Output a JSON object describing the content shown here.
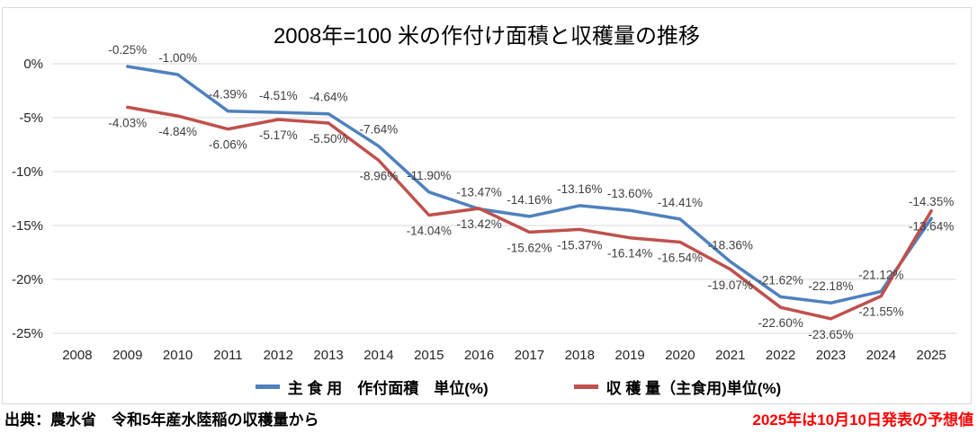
{
  "chart_data": {
    "type": "line",
    "title": "2008年=100 米の作付け面積と収穫量の推移",
    "categories": [
      "2008",
      "2009",
      "2010",
      "2011",
      "2012",
      "2013",
      "2014",
      "2015",
      "2016",
      "2017",
      "2018",
      "2019",
      "2020",
      "2021",
      "2022",
      "2023",
      "2024",
      "2025"
    ],
    "series": [
      {
        "name": "主 食 用　作付面積　単位(%)",
        "color": "#4F81BD",
        "values": [
          null,
          -0.25,
          -1.0,
          -4.39,
          -4.51,
          -4.64,
          -7.64,
          -11.9,
          -13.47,
          -14.16,
          -13.16,
          -13.6,
          -14.41,
          -18.36,
          -21.62,
          -22.18,
          -21.12,
          -14.35
        ]
      },
      {
        "name": "収 穫 量（主食用)単位(%)",
        "color": "#C0504D",
        "values": [
          null,
          -4.03,
          -4.84,
          -6.06,
          -5.17,
          -5.5,
          -8.96,
          -14.04,
          -13.42,
          -15.62,
          -15.37,
          -16.14,
          -16.54,
          -19.07,
          -22.6,
          -23.65,
          -21.55,
          -13.64
        ]
      }
    ],
    "xlabel": "",
    "ylabel": "",
    "yticks": [
      "0%",
      "-5%",
      "-10%",
      "-15%",
      "-20%",
      "-25%"
    ],
    "ylim": [
      -25,
      0
    ],
    "grid": true,
    "legend_position": "bottom",
    "data_labels": "percent_two_decimals"
  },
  "footer": {
    "source": "出典：農水省　令和5年産水陸稲の収穫量から",
    "note": "2025年は10月10日発表の予想値",
    "note_color": "#FF0000"
  },
  "colors": {
    "grid": "#D9D9D9",
    "border": "#D9D9D9",
    "axis_text": "#262626",
    "data_label_text": "#404040",
    "title_text": "#000000"
  }
}
